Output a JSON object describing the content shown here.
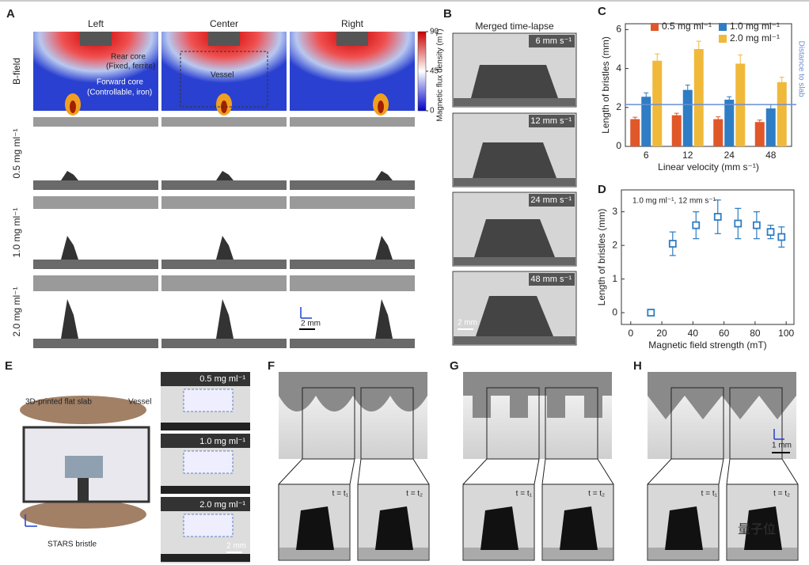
{
  "panels": {
    "A": {
      "label": "A",
      "columns": [
        "Left",
        "Center",
        "Right"
      ],
      "row_labels": [
        "B-field",
        "0.5 mg ml⁻¹",
        "1.0 mg ml⁻¹",
        "2.0 mg ml⁻¹"
      ],
      "annotations": [
        "Rear core",
        "(Fixed, ferrite)",
        "Vessel",
        "Forward core",
        "(Controllable, iron)"
      ],
      "colorbar": {
        "label": "Magnetic flux density (mT)",
        "ticks": [
          90,
          45,
          0
        ]
      },
      "scale_bar": "2 mm"
    },
    "B": {
      "label": "B",
      "title": "Merged time-lapse",
      "speeds": [
        "6 mm s⁻¹",
        "12 mm s⁻¹",
        "24 mm s⁻¹",
        "48 mm s⁻¹"
      ],
      "scale_bar": "2 mm"
    },
    "E": {
      "label": "E",
      "annotations": [
        "3D-printed flat slab",
        "Vessel",
        "STARS bristle"
      ],
      "concentrations": [
        "0.5 mg ml⁻¹",
        "1.0 mg ml⁻¹",
        "2.0 mg ml⁻¹"
      ],
      "scale_bar": "2 mm"
    },
    "F": {
      "label": "F",
      "insets": [
        "t = t₁",
        "t = t₂"
      ]
    },
    "G": {
      "label": "G",
      "insets": [
        "t = t₁",
        "t = t₂"
      ]
    },
    "H": {
      "label": "H",
      "insets": [
        "t = t₁",
        "t = t₂"
      ],
      "scale_bar": "1 mm"
    },
    "watermark": "量子位"
  },
  "chart_data": [
    {
      "type": "bar",
      "label": "C",
      "categories": [
        "6",
        "12",
        "24",
        "48"
      ],
      "xlabel": "Linear velocity (mm s⁻¹)",
      "ylabel": "Length of bristles (mm)",
      "ylim": [
        0,
        6.3
      ],
      "yticks": [
        0,
        2,
        4,
        6
      ],
      "series": [
        {
          "name": "0.5 mg ml⁻¹",
          "color": "#e0572a",
          "values": [
            1.4,
            1.6,
            1.4,
            1.25
          ],
          "errors": [
            0.1,
            0.1,
            0.12,
            0.1
          ]
        },
        {
          "name": "1.0 mg ml⁻¹",
          "color": "#2f7dc4",
          "values": [
            2.55,
            2.9,
            2.4,
            1.95
          ],
          "errors": [
            0.2,
            0.25,
            0.15,
            0.2
          ]
        },
        {
          "name": "2.0 mg ml⁻¹",
          "color": "#f0b93a",
          "values": [
            4.4,
            5.0,
            4.25,
            3.3
          ],
          "errors": [
            0.35,
            0.4,
            0.45,
            0.25
          ]
        }
      ],
      "reference_line": {
        "value": 2.15,
        "label": "Distance to slab",
        "color": "#6a8fd8"
      }
    },
    {
      "type": "scatter",
      "label": "D",
      "annotation": "1.0 mg ml⁻¹, 12 mm s⁻¹",
      "xlabel": "Magnetic field strength (mT)",
      "ylabel": "Length of bristles (mm)",
      "xlim": [
        -6,
        105
      ],
      "xticks": [
        0,
        20,
        40,
        60,
        80,
        100
      ],
      "ylim": [
        -0.35,
        3.65
      ],
      "yticks": [
        0,
        1,
        2,
        3
      ],
      "color": "#2f7dc4",
      "x": [
        13,
        27,
        42,
        56,
        69,
        81,
        90,
        97
      ],
      "values": [
        0,
        2.05,
        2.6,
        2.85,
        2.65,
        2.6,
        2.4,
        2.25
      ],
      "errors": [
        0,
        0.35,
        0.4,
        0.5,
        0.45,
        0.4,
        0.2,
        0.3
      ]
    }
  ]
}
